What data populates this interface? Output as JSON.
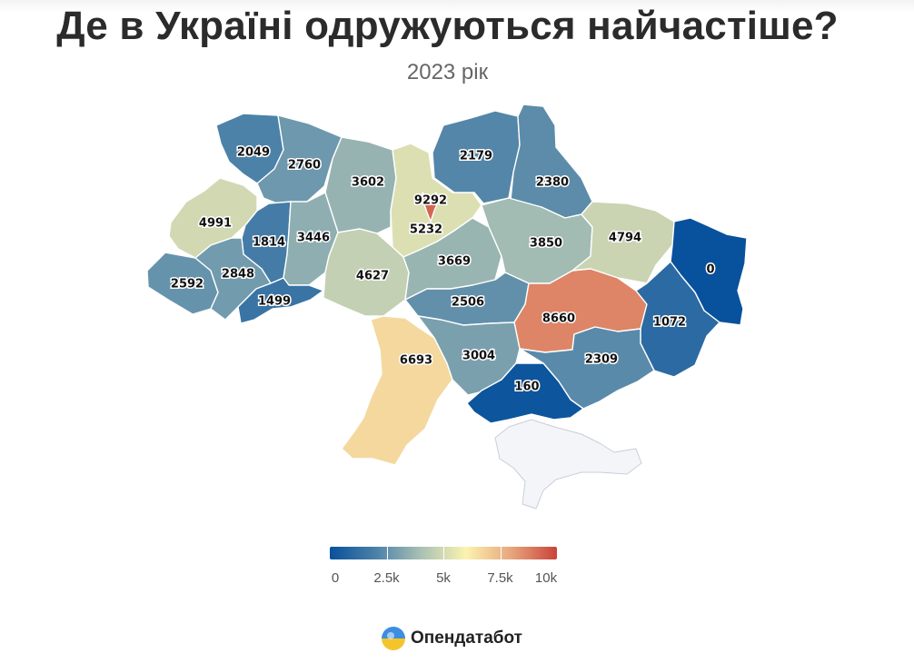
{
  "header": {
    "title": "Де в Україні одружуються найчастіше?",
    "subtitle": "2023 рік"
  },
  "legend": {
    "min": 0,
    "max": 10000,
    "stops": [
      "#08519c",
      "#4a80a8",
      "#a9c0b4",
      "#fbf3b0",
      "#e7a57c",
      "#c9433a"
    ],
    "ticks": [
      {
        "value": 0,
        "label": "0"
      },
      {
        "value": 2500,
        "label": "2.5k"
      },
      {
        "value": 5000,
        "label": "5k"
      },
      {
        "value": 7500,
        "label": "7.5k"
      },
      {
        "value": 10000,
        "label": "10k"
      }
    ]
  },
  "nodata_color": "#f4f5f8",
  "regions": [
    {
      "id": "volyn",
      "value": 2049
    },
    {
      "id": "rivne",
      "value": 2760
    },
    {
      "id": "zhytomyr",
      "value": 3602
    },
    {
      "id": "kyiv-oblast",
      "value": 5232
    },
    {
      "id": "kyiv-city",
      "value": 9292
    },
    {
      "id": "chernihiv",
      "value": 2179
    },
    {
      "id": "sumy",
      "value": 2380
    },
    {
      "id": "lviv",
      "value": 4991
    },
    {
      "id": "ternopil",
      "value": 1814
    },
    {
      "id": "khmelnytskyi",
      "value": 3446
    },
    {
      "id": "vinnytsia",
      "value": 4627
    },
    {
      "id": "cherkasy",
      "value": 3669
    },
    {
      "id": "poltava",
      "value": 3850
    },
    {
      "id": "kharkiv",
      "value": 4794
    },
    {
      "id": "luhansk",
      "value": 0
    },
    {
      "id": "zakarpattia",
      "value": 2592
    },
    {
      "id": "ivano-frankivsk",
      "value": 2848
    },
    {
      "id": "chernivtsi",
      "value": 1499
    },
    {
      "id": "kirovohrad",
      "value": 2506
    },
    {
      "id": "dnipropetrovsk",
      "value": 8660
    },
    {
      "id": "donetsk",
      "value": 1072
    },
    {
      "id": "odesa",
      "value": 6693
    },
    {
      "id": "mykolaiv",
      "value": 3004
    },
    {
      "id": "zaporizhzhia",
      "value": 2309
    },
    {
      "id": "kherson",
      "value": 160
    },
    {
      "id": "crimea",
      "value": null
    }
  ],
  "brand": {
    "name": "Опендатабот",
    "logo": "opendatabot-logo-icon"
  }
}
